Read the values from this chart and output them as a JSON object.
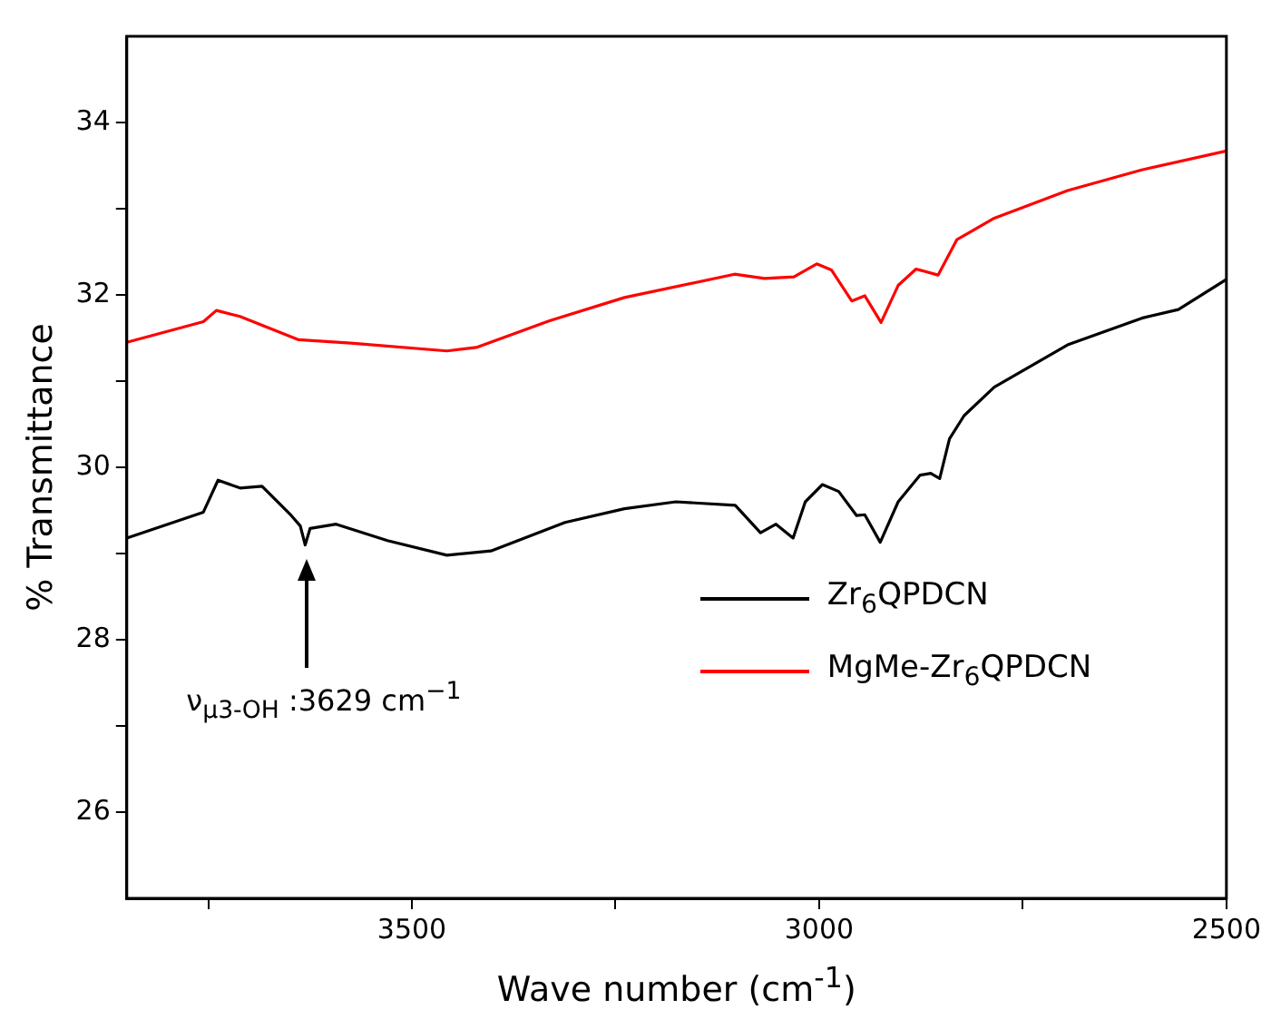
{
  "chart_data": {
    "type": "line",
    "xlabel": "Wave number (cm$^{-1}$)",
    "ylabel": "% Transmittance",
    "xlim": [
      3850,
      2500
    ],
    "ylim": [
      25,
      35
    ],
    "xticks": [
      {
        "value": 3750,
        "label": null
      },
      3500,
      {
        "value": 3250,
        "label": null
      },
      3000,
      {
        "value": 2750,
        "label": null
      },
      2500
    ],
    "yticks": [
      26,
      {
        "value": 27,
        "label": null
      },
      28,
      {
        "value": 29,
        "label": null
      },
      30,
      {
        "value": 31,
        "label": null
      },
      32,
      {
        "value": 33,
        "label": null
      },
      34
    ],
    "grid": false,
    "legend": "bottom right",
    "marker": "none",
    "line_style": "solid",
    "annotations": [
      "ν$_{μ3-OH}$ :3629 cm$^{−1}$"
    ],
    "series": [
      {
        "name": "Zr$_{6}$QPDCN",
        "color": "#000000",
        "x": [
          3850,
          3756,
          3738,
          3711,
          3684,
          3648,
          3637,
          3631,
          3625,
          3593,
          3530,
          3457,
          3403,
          3312,
          3239,
          3176,
          3103,
          3072,
          3053,
          3032,
          3017,
          2996,
          2976,
          2954,
          2944,
          2925,
          2903,
          2876,
          2863,
          2852,
          2840,
          2822,
          2785,
          2695,
          2604,
          2559,
          2500
        ],
        "values": [
          29.18,
          29.48,
          29.85,
          29.76,
          29.78,
          29.44,
          29.32,
          29.1,
          29.29,
          29.34,
          29.15,
          28.98,
          29.03,
          29.36,
          29.52,
          29.6,
          29.56,
          29.24,
          29.34,
          29.18,
          29.6,
          29.8,
          29.72,
          29.44,
          29.45,
          29.13,
          29.6,
          29.91,
          29.93,
          29.87,
          30.33,
          30.6,
          30.93,
          31.42,
          31.73,
          31.83,
          32.18
        ]
      },
      {
        "name": "MgMe-Zr$_{6}$QPDCN",
        "color": "#ff0000",
        "x": [
          3850,
          3756,
          3740,
          3711,
          3639,
          3575,
          3457,
          3421,
          3331,
          3239,
          3104,
          3067,
          3031,
          3003,
          2985,
          2960,
          2944,
          2924,
          2903,
          2881,
          2854,
          2831,
          2785,
          2695,
          2604,
          2500
        ],
        "values": [
          31.45,
          31.69,
          31.82,
          31.75,
          31.48,
          31.44,
          31.35,
          31.39,
          31.7,
          31.97,
          32.24,
          32.19,
          32.21,
          32.36,
          32.29,
          31.93,
          31.99,
          31.68,
          32.11,
          32.3,
          32.23,
          32.64,
          32.89,
          33.21,
          33.45,
          33.67
        ]
      }
    ]
  }
}
